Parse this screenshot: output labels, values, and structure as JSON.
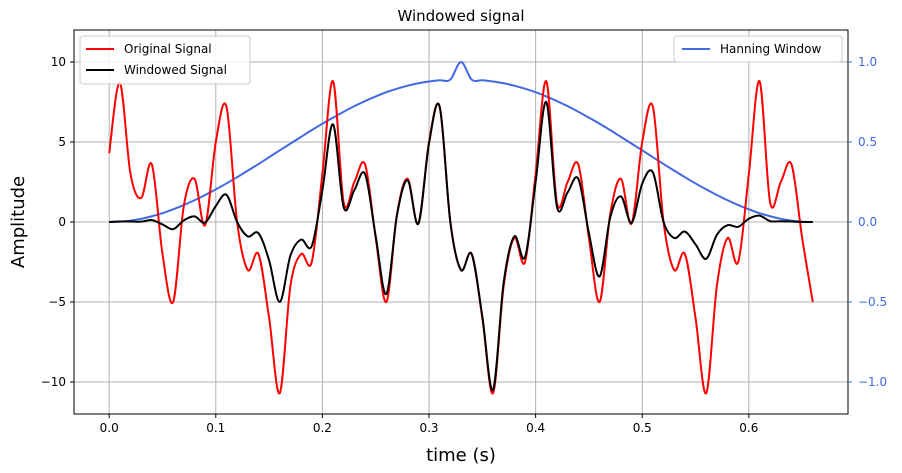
{
  "chart_data": {
    "type": "line",
    "title": "Windowed signal",
    "xlabel": "time (s)",
    "ylabel": "Amplitude",
    "xlim": [
      -0.033,
      0.693
    ],
    "ylim": [
      -12,
      12
    ],
    "y2lim": [
      -1.2,
      1.2
    ],
    "x_ticks": [
      0.0,
      0.1,
      0.2,
      0.3,
      0.4,
      0.5,
      0.6
    ],
    "x_tick_labels": [
      "0.0",
      "0.1",
      "0.2",
      "0.3",
      "0.4",
      "0.5",
      "0.6"
    ],
    "y_ticks": [
      -10,
      -5,
      0,
      5,
      10
    ],
    "y_tick_labels": [
      "−10",
      "−5",
      "0",
      "5",
      "10"
    ],
    "y2_ticks": [
      -1.0,
      -0.5,
      0.0,
      0.5,
      1.0
    ],
    "y2_tick_labels": [
      "−1.0",
      "−0.5",
      "0.0",
      "0.5",
      "1.0"
    ],
    "grid": true,
    "x": [
      0.0,
      0.01,
      0.02,
      0.03,
      0.04,
      0.05,
      0.06,
      0.07,
      0.08,
      0.09,
      0.1,
      0.11,
      0.12,
      0.13,
      0.14,
      0.15,
      0.16,
      0.17,
      0.18,
      0.19,
      0.2,
      0.21,
      0.22,
      0.23,
      0.24,
      0.25,
      0.26,
      0.27,
      0.28,
      0.29,
      0.3,
      0.31,
      0.32,
      0.33,
      0.34,
      0.35,
      0.36,
      0.37,
      0.38,
      0.39,
      0.4,
      0.41,
      0.42,
      0.43,
      0.44,
      0.45,
      0.46,
      0.47,
      0.48,
      0.49,
      0.5,
      0.51,
      0.52,
      0.53,
      0.54,
      0.55,
      0.56,
      0.57,
      0.58,
      0.59,
      0.6,
      0.61,
      0.62,
      0.63,
      0.64,
      0.65,
      0.66
    ],
    "series": [
      {
        "name": "Original Signal",
        "color": "#ff0000",
        "axis": "left",
        "values": [
          4.3,
          8.7,
          3.0,
          1.5,
          3.6,
          -2.0,
          -5.0,
          1.0,
          2.7,
          -0.2,
          5.0,
          7.2,
          0.0,
          -3.0,
          -2.0,
          -6.0,
          -10.7,
          -4.0,
          -2.0,
          -2.5,
          3.0,
          8.8,
          1.2,
          2.5,
          3.6,
          -1.0,
          -5.0,
          0.5,
          2.7,
          -0.1,
          5.0,
          7.2,
          0.0,
          -3.0,
          -2.0,
          -6.0,
          -10.7,
          -4.0,
          -1.0,
          -2.5,
          3.0,
          8.8,
          1.2,
          2.5,
          3.6,
          -1.0,
          -5.0,
          0.5,
          2.7,
          -0.1,
          5.0,
          7.2,
          0.0,
          -3.0,
          -2.0,
          -6.0,
          -10.7,
          -4.0,
          -1.0,
          -2.5,
          3.0,
          8.8,
          1.2,
          2.5,
          3.6,
          -1.0,
          -5.0
        ]
      },
      {
        "name": "Windowed Signal",
        "color": "#000000",
        "axis": "left",
        "values": [
          0.0,
          0.03,
          0.03,
          0.02,
          0.12,
          -0.15,
          -0.45,
          0.1,
          0.35,
          -0.03,
          1.0,
          1.7,
          0.0,
          -0.9,
          -0.7,
          -2.4,
          -5.0,
          -2.1,
          -1.1,
          -1.5,
          2.0,
          6.1,
          0.9,
          2.0,
          3.0,
          -0.9,
          -4.5,
          0.45,
          2.6,
          -0.1,
          4.9,
          7.2,
          0.0,
          -3.0,
          -2.0,
          -5.9,
          -10.5,
          -3.8,
          -0.9,
          -2.2,
          2.5,
          7.5,
          0.95,
          1.85,
          2.7,
          -0.7,
          -3.4,
          0.3,
          1.6,
          -0.05,
          2.4,
          3.1,
          0.0,
          -1.0,
          -0.6,
          -1.4,
          -2.3,
          -0.8,
          -0.2,
          -0.3,
          0.2,
          0.4,
          0.05,
          0.05,
          0.03,
          0.0,
          0.0
        ]
      },
      {
        "name": "Hanning Window",
        "color": "#4169e1",
        "axis": "right",
        "values": [
          0.0,
          0.002,
          0.009,
          0.02,
          0.036,
          0.055,
          0.079,
          0.106,
          0.136,
          0.169,
          0.204,
          0.241,
          0.28,
          0.321,
          0.362,
          0.405,
          0.448,
          0.49,
          0.532,
          0.574,
          0.614,
          0.652,
          0.689,
          0.724,
          0.756,
          0.785,
          0.811,
          0.833,
          0.852,
          0.867,
          0.878,
          0.886,
          0.89,
          1.0,
          0.89,
          0.886,
          0.878,
          0.867,
          0.852,
          0.833,
          0.811,
          0.785,
          0.756,
          0.724,
          0.689,
          0.652,
          0.614,
          0.574,
          0.532,
          0.49,
          0.448,
          0.405,
          0.362,
          0.321,
          0.28,
          0.241,
          0.204,
          0.169,
          0.136,
          0.106,
          0.079,
          0.055,
          0.036,
          0.02,
          0.009,
          0.002,
          0.0
        ]
      }
    ],
    "legend_left": {
      "position": "upper-left",
      "entries": [
        "Original Signal",
        "Windowed Signal"
      ]
    },
    "legend_right": {
      "position": "upper-right",
      "entries": [
        "Hanning Window"
      ]
    },
    "right_axis_color": "#4169e1"
  }
}
